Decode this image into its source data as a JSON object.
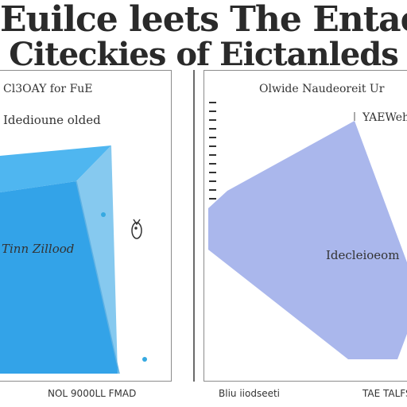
{
  "title": {
    "line1": "Euilce leets The Entaeriee Belb",
    "line2": "Citeckies of Eictanleds"
  },
  "left_panel": {
    "label_top": "Cl3OAY for FuE",
    "label_second": "Idedioune olded",
    "label_center": "Tinn Zillood",
    "footer": "NOL 9000LL FMAD"
  },
  "right_panel": {
    "label_top": "Olwide Naudeoreit Ur",
    "label_top2": "YAEWeh",
    "label_center": "Idecleioeom",
    "footer_left": "Bliu iiodseeti",
    "footer_right": "TAE TALFS"
  },
  "colors": {
    "prism_front": "#33a3e8",
    "prism_side": "#86c9ef",
    "prism_top": "#4fb6f0",
    "polygon_fill": "#aab7ec",
    "dot": "#36a9e1",
    "border": "#8c8c8c",
    "text": "#2a2a2a"
  },
  "icons": {
    "fish": "fish-icon"
  }
}
